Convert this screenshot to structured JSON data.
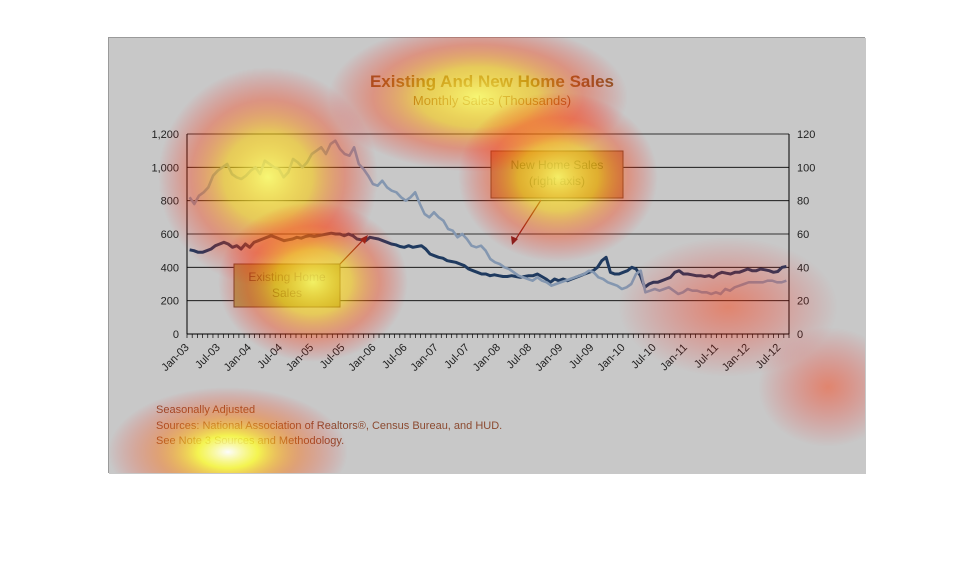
{
  "chart_data": {
    "type": "line",
    "title": "Existing And New Home Sales",
    "subtitle": "Monthly Sales (Thousands)",
    "x_tick_labels": [
      "Jan-03",
      "Jul-03",
      "Jan-04",
      "Jul-04",
      "Jan-05",
      "Jul-05",
      "Jan-06",
      "Jul-06",
      "Jan-07",
      "Jul-07",
      "Jan-08",
      "Jul-08",
      "Jan-09",
      "Jul-09",
      "Jan-10",
      "Jul-10",
      "Jan-11",
      "Jul-11",
      "Jan-12",
      "Jul-12"
    ],
    "y_left_ticks": [
      "0",
      "200",
      "400",
      "600",
      "800",
      "1,000",
      "1,200"
    ],
    "y_right_ticks": [
      "0",
      "20",
      "40",
      "60",
      "80",
      "100",
      "120"
    ],
    "y_left_lim": [
      0,
      1200
    ],
    "y_right_lim": [
      0,
      120
    ],
    "grid": "horizontal",
    "series": [
      {
        "name": "Existing Home Sales",
        "axis": "left",
        "color": "#1f3a5f",
        "values": [
          505,
          500,
          490,
          490,
          500,
          510,
          530,
          540,
          550,
          540,
          520,
          530,
          510,
          540,
          520,
          550,
          560,
          570,
          580,
          590,
          580,
          570,
          560,
          565,
          570,
          580,
          575,
          585,
          590,
          585,
          590,
          595,
          600,
          605,
          600,
          600,
          590,
          600,
          590,
          570,
          565,
          560,
          580,
          575,
          570,
          560,
          550,
          540,
          535,
          525,
          520,
          530,
          520,
          525,
          530,
          510,
          480,
          470,
          460,
          455,
          440,
          435,
          430,
          420,
          410,
          390,
          380,
          370,
          360,
          360,
          350,
          355,
          350,
          345,
          345,
          350,
          345,
          340,
          345,
          350,
          350,
          360,
          345,
          330,
          310,
          330,
          320,
          330,
          320,
          330,
          340,
          350,
          360,
          370,
          380,
          400,
          440,
          460,
          370,
          360,
          360,
          370,
          380,
          400,
          390,
          350,
          280,
          300,
          310,
          310,
          320,
          330,
          340,
          370,
          380,
          360,
          360,
          355,
          350,
          350,
          345,
          350,
          340,
          360,
          370,
          365,
          360,
          370,
          370,
          380,
          390,
          380,
          380,
          390,
          385,
          380,
          370,
          375,
          400,
          405
        ]
      },
      {
        "name": "New Home Sales",
        "axis": "right",
        "color": "#8497b0",
        "values": [
          82,
          78,
          83,
          85,
          88,
          95,
          98,
          100,
          102,
          96,
          94,
          93,
          95,
          98,
          100,
          96,
          104,
          102,
          100,
          99,
          94,
          97,
          105,
          103,
          100,
          103,
          108,
          110,
          112,
          108,
          114,
          116,
          111,
          108,
          107,
          112,
          102,
          99,
          95,
          90,
          89,
          92,
          88,
          86,
          85,
          82,
          80,
          82,
          85,
          78,
          72,
          70,
          73,
          70,
          68,
          63,
          62,
          58,
          60,
          57,
          53,
          52,
          53,
          50,
          45,
          43,
          42,
          40,
          39,
          37,
          35,
          34,
          33,
          32,
          34,
          32,
          31,
          29,
          30,
          31,
          32,
          33,
          34,
          35,
          36,
          38,
          37,
          34,
          33,
          31,
          30,
          29,
          27,
          28,
          30,
          36,
          38,
          25,
          26,
          27,
          26,
          27,
          28,
          26,
          24,
          25,
          27,
          26,
          26,
          25,
          25,
          24,
          25,
          24,
          27,
          26,
          28,
          29,
          30,
          31,
          31,
          31,
          31,
          32,
          32,
          31,
          31,
          32
        ]
      }
    ],
    "annotations": [
      {
        "text_lines": [
          "New Home Sales",
          "(right axis)"
        ]
      },
      {
        "text_lines": [
          "Existing Home",
          "Sales"
        ]
      }
    ],
    "footnotes": [
      "Seasonally Adjusted",
      "Sources:  National Association of Realtors®, Census Bureau, and HUD.",
      "See Note 3 Sources and Methodology."
    ]
  },
  "colors": {
    "panel_background": "#c8c8c8",
    "title_color": "#8b5a2b",
    "grid_color": "#000000",
    "annotation_fill": "#b5a46d"
  }
}
